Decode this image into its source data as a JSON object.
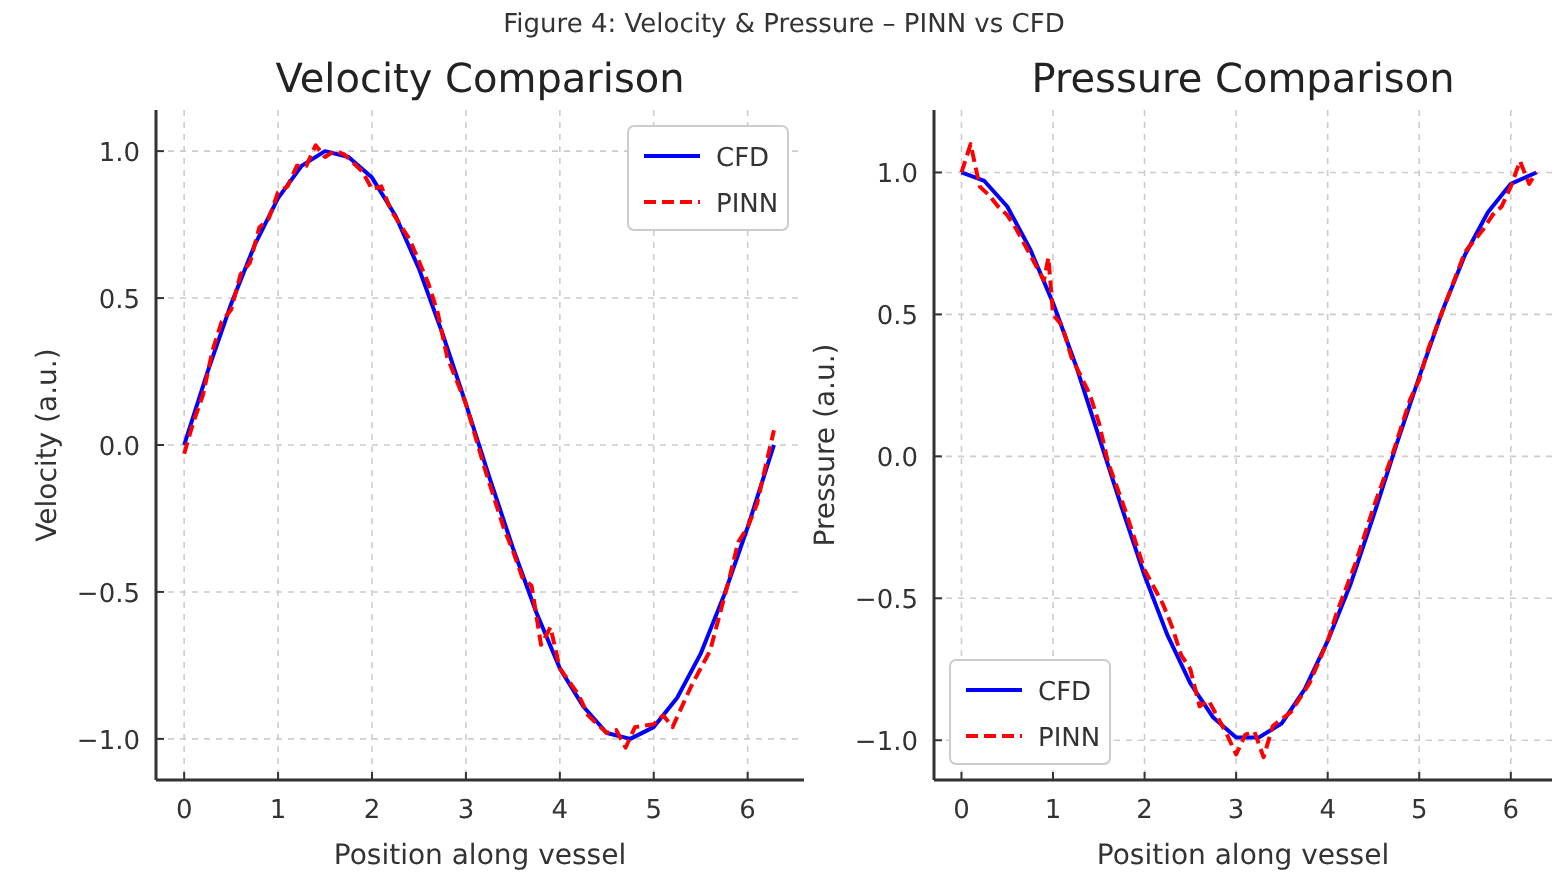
{
  "chart_data": [
    {
      "type": "line",
      "title": "Velocity Comparison",
      "xlabel": "Position along vessel",
      "ylabel": "Velocity (a.u.)",
      "annotations": [
        "Figure 4: Velocity & Pressure – PINN vs CFD"
      ],
      "xlim": [
        -0.3,
        6.6
      ],
      "ylim": [
        -1.14,
        1.14
      ],
      "xticks": [
        0,
        1,
        2,
        3,
        4,
        5,
        6
      ],
      "yticks": [
        {
          "value": -1,
          "label": "−1.0"
        },
        {
          "value": -0.5,
          "label": "−0.5"
        },
        {
          "value": 0,
          "label": "0.0"
        },
        {
          "value": 0.5,
          "label": "0.5"
        },
        {
          "value": 1,
          "label": "1.0"
        }
      ],
      "grid": true,
      "legend": "top right",
      "series": [
        {
          "name": "CFD",
          "color": "#0000ff",
          "line_style": "solid",
          "x": [
            0,
            0.25,
            0.5,
            0.75,
            1,
            1.25,
            1.5,
            1.75,
            2,
            2.25,
            2.5,
            2.75,
            3,
            3.25,
            3.5,
            3.75,
            4,
            4.25,
            4.5,
            4.75,
            5,
            5.25,
            5.5,
            5.75,
            6,
            6.28
          ],
          "values": [
            0,
            0.25,
            0.48,
            0.68,
            0.84,
            0.95,
            1.0,
            0.98,
            0.91,
            0.78,
            0.6,
            0.38,
            0.14,
            -0.11,
            -0.35,
            -0.57,
            -0.76,
            -0.89,
            -0.98,
            -1.0,
            -0.96,
            -0.86,
            -0.71,
            -0.51,
            -0.28,
            0
          ]
        },
        {
          "name": "PINN",
          "color": "#ff0000",
          "line_style": "dashed",
          "x": [
            0,
            0.1,
            0.2,
            0.3,
            0.4,
            0.5,
            0.6,
            0.7,
            0.8,
            0.9,
            1.0,
            1.1,
            1.2,
            1.3,
            1.4,
            1.5,
            1.6,
            1.7,
            1.8,
            1.9,
            2.0,
            2.1,
            2.2,
            2.4,
            2.6,
            2.7,
            2.8,
            3.0,
            3.2,
            3.4,
            3.5,
            3.6,
            3.7,
            3.8,
            3.9,
            4.0,
            4.2,
            4.3,
            4.5,
            4.6,
            4.7,
            4.8,
            5.0,
            5.1,
            5.2,
            5.4,
            5.6,
            5.8,
            5.9,
            6.0,
            6.1,
            6.2,
            6.28
          ],
          "values": [
            -0.03,
            0.08,
            0.17,
            0.32,
            0.42,
            0.46,
            0.58,
            0.62,
            0.74,
            0.77,
            0.86,
            0.88,
            0.95,
            0.95,
            1.02,
            0.98,
            1.0,
            0.99,
            0.96,
            0.93,
            0.87,
            0.88,
            0.8,
            0.7,
            0.55,
            0.45,
            0.3,
            0.14,
            -0.08,
            -0.28,
            -0.36,
            -0.45,
            -0.48,
            -0.68,
            -0.62,
            -0.76,
            -0.85,
            -0.92,
            -0.98,
            -0.97,
            -1.03,
            -0.96,
            -0.95,
            -0.92,
            -0.96,
            -0.82,
            -0.7,
            -0.46,
            -0.33,
            -0.28,
            -0.2,
            -0.06,
            0.05
          ]
        }
      ]
    },
    {
      "type": "line",
      "title": "Pressure Comparison",
      "xlabel": "Position along vessel",
      "ylabel": "Pressure (a.u.)",
      "xlim": [
        -0.3,
        6.45
      ],
      "ylim": [
        -1.14,
        1.22
      ],
      "xticks": [
        0,
        1,
        2,
        3,
        4,
        5,
        6
      ],
      "yticks": [
        {
          "value": -1,
          "label": "−1.0"
        },
        {
          "value": -0.5,
          "label": "−0.5"
        },
        {
          "value": 0,
          "label": "0.0"
        },
        {
          "value": 0.5,
          "label": "0.5"
        },
        {
          "value": 1,
          "label": "1.0"
        }
      ],
      "grid": true,
      "legend": "bottom left",
      "series": [
        {
          "name": "CFD",
          "color": "#0000ff",
          "line_style": "solid",
          "x": [
            0,
            0.25,
            0.5,
            0.75,
            1,
            1.25,
            1.5,
            1.75,
            2,
            2.25,
            2.5,
            2.75,
            3,
            3.25,
            3.5,
            3.75,
            4,
            4.25,
            4.5,
            4.75,
            5,
            5.25,
            5.5,
            5.75,
            6,
            6.28
          ],
          "values": [
            1,
            0.97,
            0.88,
            0.73,
            0.54,
            0.32,
            0.07,
            -0.18,
            -0.42,
            -0.63,
            -0.8,
            -0.92,
            -0.99,
            -0.99,
            -0.94,
            -0.82,
            -0.65,
            -0.45,
            -0.21,
            0.04,
            0.28,
            0.51,
            0.71,
            0.86,
            0.96,
            1.0
          ]
        },
        {
          "name": "PINN",
          "color": "#ff0000",
          "line_style": "dashed",
          "x": [
            0,
            0.1,
            0.2,
            0.3,
            0.4,
            0.5,
            0.6,
            0.7,
            0.8,
            0.9,
            0.95,
            1.0,
            1.1,
            1.2,
            1.4,
            1.5,
            1.6,
            1.8,
            2.0,
            2.2,
            2.3,
            2.4,
            2.5,
            2.6,
            2.7,
            2.9,
            3.0,
            3.1,
            3.2,
            3.3,
            3.4,
            3.6,
            3.8,
            4.0,
            4.1,
            4.3,
            4.5,
            4.7,
            4.9,
            5.0,
            5.1,
            5.3,
            5.5,
            5.7,
            5.8,
            5.9,
            6.0,
            6.1,
            6.2,
            6.28
          ],
          "values": [
            1.0,
            1.1,
            0.95,
            0.92,
            0.88,
            0.85,
            0.8,
            0.74,
            0.68,
            0.62,
            0.7,
            0.5,
            0.46,
            0.35,
            0.22,
            0.12,
            -0.02,
            -0.2,
            -0.4,
            -0.52,
            -0.6,
            -0.7,
            -0.75,
            -0.88,
            -0.86,
            -0.98,
            -1.05,
            -0.98,
            -0.97,
            -1.06,
            -0.95,
            -0.9,
            -0.8,
            -0.65,
            -0.55,
            -0.38,
            -0.18,
            0.0,
            0.2,
            0.27,
            0.38,
            0.55,
            0.72,
            0.8,
            0.85,
            0.88,
            0.95,
            1.04,
            0.96,
            1.0
          ]
        }
      ]
    }
  ]
}
